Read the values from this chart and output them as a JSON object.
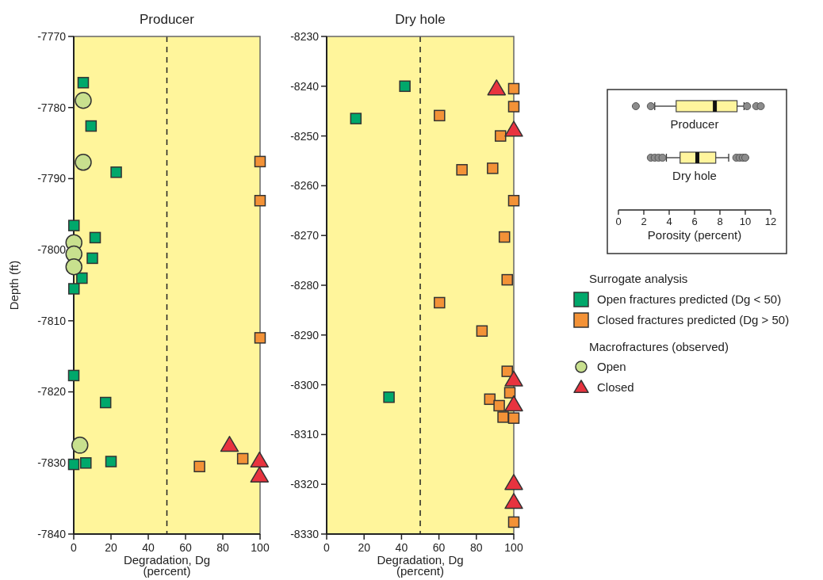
{
  "chart_data": [
    {
      "type": "scatter",
      "title": "Producer",
      "xlabel": "Degradation, Dg\n(percent)",
      "ylabel": "Depth (ft)",
      "xlim": [
        0,
        100
      ],
      "xticks": [
        0,
        20,
        40,
        60,
        80,
        100
      ],
      "ylim": [
        -7840,
        -7770
      ],
      "yticks": [
        -7840,
        -7830,
        -7820,
        -7810,
        -7800,
        -7790,
        -7780,
        -7770
      ],
      "ref_lines": [
        {
          "axis": "x",
          "value": 50,
          "line_style": "dashed",
          "color": "#222222"
        }
      ],
      "series": [
        {
          "color": "#00a86b",
          "marker": "square",
          "x": [
            5.1,
            9.3,
            22.8,
            0.1,
            11.5,
            10,
            4.4,
            0.1,
            0,
            17.1,
            0,
            6.5,
            20
          ],
          "values": [
            -7776.5,
            -7782.6,
            -7789.1,
            -7796.6,
            -7798.3,
            -7801.2,
            -7804,
            -7805.5,
            -7817.7,
            -7821.5,
            -7830.2,
            -7830,
            -7829.8
          ]
        },
        {
          "color": "#f39237",
          "marker": "square",
          "x": [
            100,
            100,
            100,
            67.5,
            90.7
          ],
          "values": [
            -7787.6,
            -7793.1,
            -7812.4,
            -7830.5,
            -7829.4
          ]
        },
        {
          "color": "#c8e08e",
          "marker": "circle",
          "x": [
            5.1,
            5.1,
            0.1,
            0.1,
            0.1,
            3.3
          ],
          "values": [
            -7779,
            -7787.7,
            -7799,
            -7800.6,
            -7802.4,
            -7827.5
          ]
        },
        {
          "color": "#e8333f",
          "marker": "triangle",
          "x": [
            83.6,
            99.7,
            99.7
          ],
          "values": [
            -7827.5,
            -7829.7,
            -7831.8
          ]
        }
      ]
    },
    {
      "type": "scatter",
      "title": "Dry hole",
      "xlabel": "Degradation, Dg\n(percent)",
      "xlim": [
        0,
        100
      ],
      "xticks": [
        0,
        20,
        40,
        60,
        80,
        100
      ],
      "ylim": [
        -8330,
        -8230
      ],
      "yticks": [
        -8330,
        -8320,
        -8310,
        -8300,
        -8290,
        -8280,
        -8270,
        -8260,
        -8250,
        -8240,
        -8230
      ],
      "ref_lines": [
        {
          "axis": "x",
          "value": 50,
          "line_style": "dashed",
          "color": "#222222"
        }
      ],
      "legend": "right",
      "legend_title": "Surrogate analysis",
      "annotations": [
        "Macrofractures (observed)"
      ],
      "series": [
        {
          "name": "Open fractures predicted (Dg < 50)",
          "color": "#00a86b",
          "marker": "square",
          "x": [
            41.8,
            15.6,
            33.3
          ],
          "values": [
            -8240,
            -8246.5,
            -8302.5
          ]
        },
        {
          "name": "Closed fractures predicted (Dg > 50)",
          "color": "#f39237",
          "marker": "square",
          "x": [
            100,
            100,
            60.3,
            92.9,
            72.3,
            88.7,
            null,
            null,
            100,
            95,
            96.5,
            60.3,
            83,
            96.5,
            97.9,
            87.2,
            92.2,
            94.3,
            null,
            null,
            100,
            100
          ],
          "values": [
            -8240.5,
            -8244.1,
            -8245.9,
            -8250,
            -8256.8,
            -8256.5,
            null,
            null,
            -8263,
            -8270.3,
            -8278.9,
            -8283.5,
            -8289.2,
            -8297.3,
            -8301.6,
            -8302.9,
            -8304.2,
            -8306.5,
            null,
            null,
            -8306.7,
            -8327.6
          ]
        },
        {
          "name": "Open",
          "color": "#c8e08e",
          "marker": "circle"
        },
        {
          "name": "Closed",
          "color": "#e8333f",
          "marker": "triangle",
          "x": [
            90.8,
            100,
            100,
            100,
            100,
            100
          ],
          "values": [
            -8240.5,
            -8248.8,
            -8299,
            -8304,
            -8319.8,
            -8323.6
          ]
        }
      ]
    },
    {
      "type": "box",
      "orientation": "horizontal",
      "categories": [
        "Producer",
        "Dry hole"
      ],
      "xlabel": "Porosity (percent)",
      "xlim": [
        0,
        12
      ],
      "xticks": [
        0,
        2,
        4,
        6,
        8,
        10,
        12
      ],
      "tick_labels": "x",
      "color": "#fff59d",
      "boxes": [
        {
          "low": 2.86,
          "q1": 4.55,
          "median": 7.6,
          "q3": 9.35,
          "high": 9.9,
          "outliers": [
            1.37,
            2.55,
            10.14,
            10.86,
            11.22
          ]
        },
        {
          "low": 3.78,
          "q1": 4.86,
          "median": 6.22,
          "q3": 7.67,
          "high": 8.69,
          "outliers": [
            2.55,
            2.86,
            3.16,
            3.47,
            9.29,
            9.55,
            9.8,
            10
          ]
        }
      ]
    }
  ]
}
